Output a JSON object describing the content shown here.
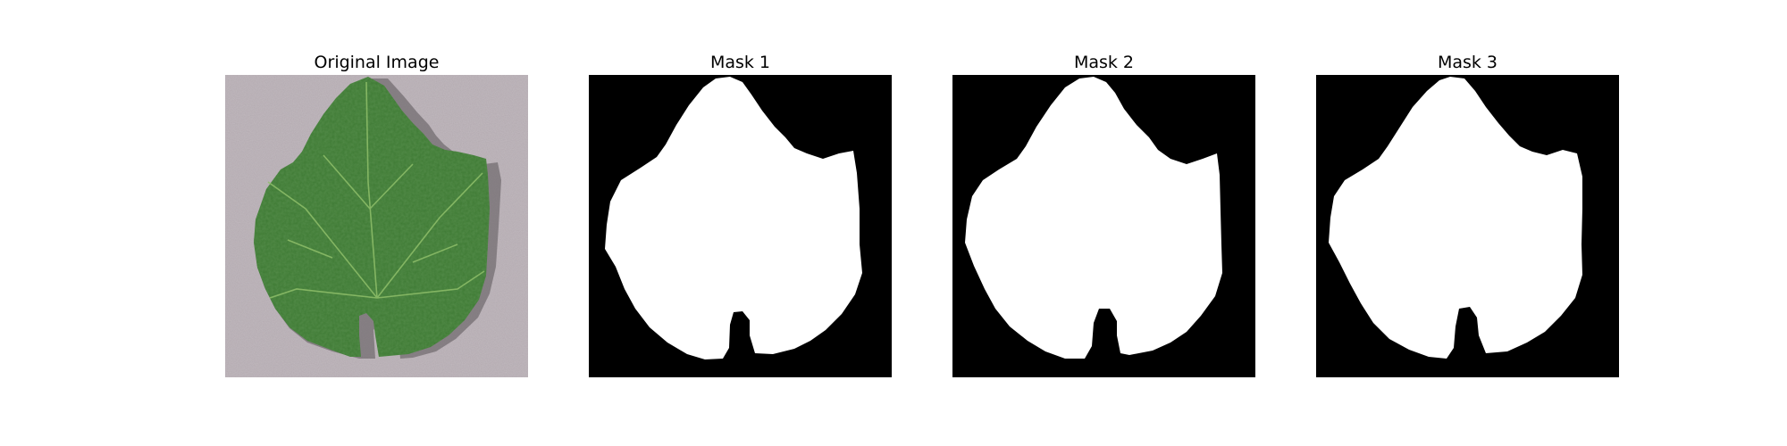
{
  "figure": {
    "panels": [
      {
        "title": "Original Image",
        "kind": "photo",
        "subject": "grape-leaf-photo"
      },
      {
        "title": "Mask 1",
        "kind": "mask",
        "subject": "leaf-mask-1"
      },
      {
        "title": "Mask 2",
        "kind": "mask",
        "subject": "leaf-mask-2"
      },
      {
        "title": "Mask 3",
        "kind": "mask",
        "subject": "leaf-mask-3"
      }
    ]
  },
  "colors": {
    "background": "#ffffff",
    "mask_foreground": "#ffffff",
    "mask_background": "#000000",
    "leaf_green": "#3e7a34",
    "leaf_vein": "#8fbf6a",
    "photo_background": "#b3aab0"
  }
}
